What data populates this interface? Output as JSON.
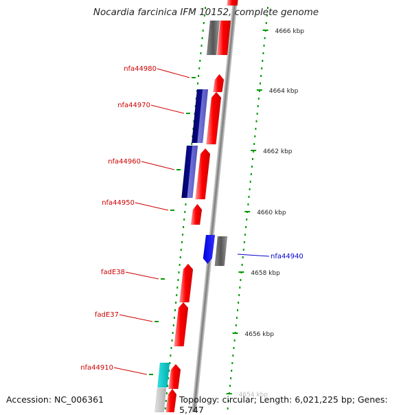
{
  "title": "Nocardia farcinica IFM 10152, complete genome",
  "accession": "Accession: NC_006361",
  "stats": "Topology: circular; Length: 6,021,225 bp; Genes: 5,747",
  "ruler": [
    {
      "label": "4666 kbp",
      "kbp": 4666
    },
    {
      "label": "4664 kbp",
      "kbp": 4664
    },
    {
      "label": "4662 kbp",
      "kbp": 4662
    },
    {
      "label": "4660 kbp",
      "kbp": 4660
    },
    {
      "label": "4658 kbp",
      "kbp": 4658
    },
    {
      "label": "4656 kbp",
      "kbp": 4656
    },
    {
      "label": "4654 kbp",
      "kbp": 4654
    }
  ],
  "gene_labels": [
    {
      "name": "nfa44980",
      "side": "left",
      "strand": "forward"
    },
    {
      "name": "nfa44970",
      "side": "left",
      "strand": "forward"
    },
    {
      "name": "nfa44960",
      "side": "left",
      "strand": "forward"
    },
    {
      "name": "nfa44950",
      "side": "left",
      "strand": "forward"
    },
    {
      "name": "nfa44940",
      "side": "right",
      "strand": "reverse"
    },
    {
      "name": "fadE38",
      "side": "left",
      "strand": "forward"
    },
    {
      "name": "fadE37",
      "side": "left",
      "strand": "forward"
    },
    {
      "name": "nfa44910",
      "side": "left",
      "strand": "forward"
    }
  ],
  "colors": {
    "forward_cds": "#ff0000",
    "reverse_cds": "#0000ff",
    "forward_alt": "#000080",
    "gene_gray": "#666666",
    "rna": "#00cccc",
    "label_forward": "#cc0000",
    "label_reverse": "#0000cc",
    "tick": "#009900",
    "backbone": "#999999"
  },
  "icons": {
    "up_arrow": "forward-strand-arrow-icon",
    "down_arrow": "reverse-strand-arrow-icon"
  }
}
